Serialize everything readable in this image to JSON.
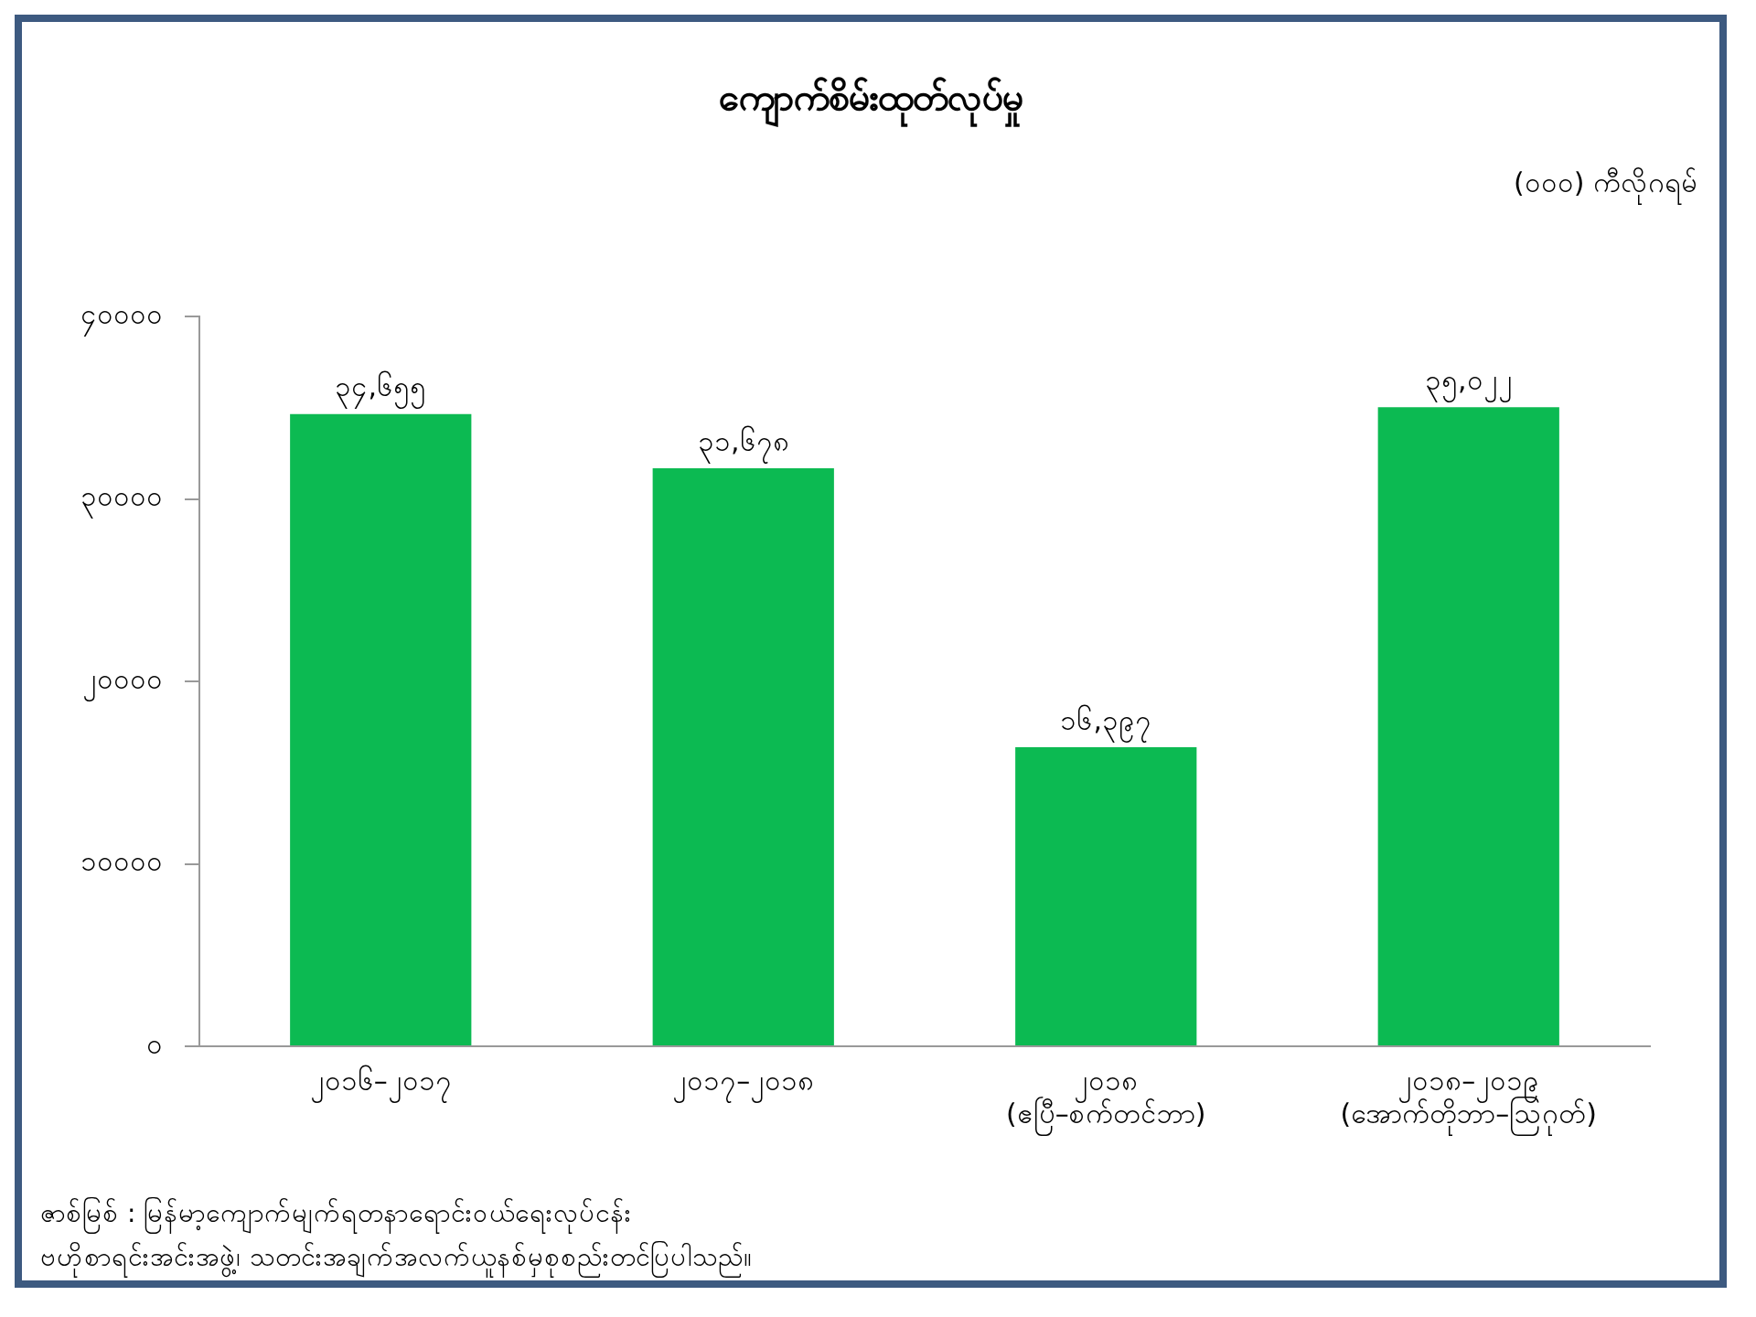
{
  "chart_data": {
    "type": "bar",
    "title": "ကျောက်စိမ်းထုတ်လုပ်မှု",
    "categories": [
      "၂၀၁၆–၂၀၁၇",
      "၂၀၁၇–၂၀၁၈",
      "၂၀၁၈\n(ဧပြီ–စက်တင်ဘာ)",
      "၂၀၁၈–၂၀၁၉\n(အောက်တိုဘာ–ဩဂုတ်)"
    ],
    "values": [
      34655,
      31678,
      16397,
      35022
    ],
    "value_labels": [
      "၃၄,၆၅၅",
      "၃၁,၆၇၈",
      "၁၆,၃၉၇",
      "၃၅,၀၂၂"
    ],
    "color": "#0cba52",
    "ylim": [
      0,
      40000
    ],
    "yticks": [
      {
        "value": 0,
        "label": "၀"
      },
      {
        "value": 10000,
        "label": "၁၀၀၀၀"
      },
      {
        "value": 20000,
        "label": "၂၀၀၀၀"
      },
      {
        "value": 30000,
        "label": "၃၀၀၀၀"
      },
      {
        "value": 40000,
        "label": "၄၀၀၀၀"
      }
    ],
    "grid": false,
    "legend": false,
    "annotations": [
      "(၀၀၀) ကီလိုဂရမ်",
      "ဇာစ်မြစ် : မြန်မာ့ကျောက်မျက်ရတနာရောင်းဝယ်ရေးလုပ်ငန်း\nဗဟိုစာရင်းအင်းအဖွဲ့၊ သတင်းအချက်အလက်ယူနစ်မှစုစည်းတင်ပြပါသည်။"
    ]
  }
}
